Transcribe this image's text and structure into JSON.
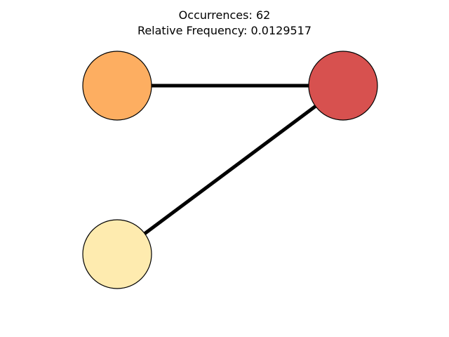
{
  "title": {
    "line1": "Occurrences: 62",
    "line2": "Relative Frequency: 0.0129517"
  },
  "graph": {
    "nodes": [
      {
        "id": "node-top-left",
        "color": "#fdae61"
      },
      {
        "id": "node-top-right",
        "color": "#d7514f"
      },
      {
        "id": "node-bottom-left",
        "color": "#feebaf"
      }
    ],
    "edges": [
      {
        "from": "node-top-left",
        "to": "node-top-right"
      },
      {
        "from": "node-top-right",
        "to": "node-bottom-left"
      }
    ]
  }
}
